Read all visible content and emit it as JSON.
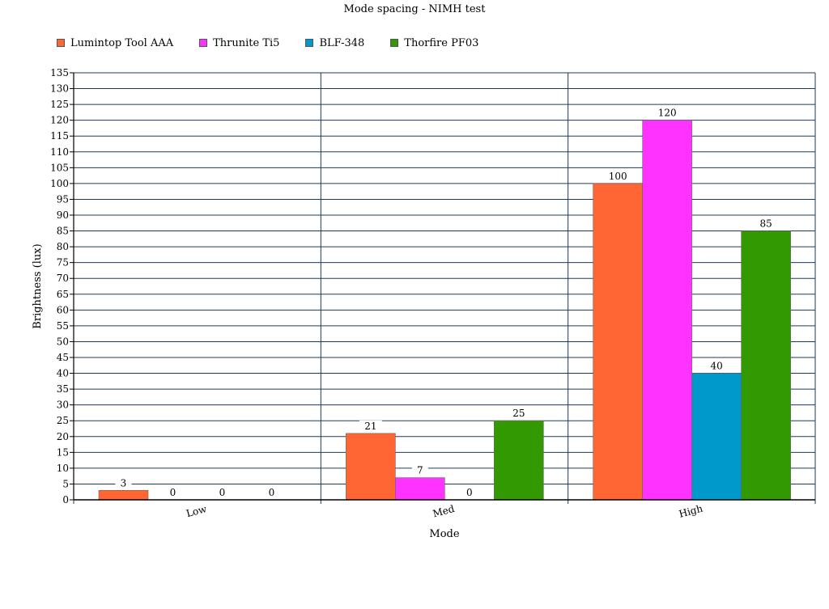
{
  "chart_data": {
    "type": "bar",
    "title": "Mode spacing - NIMH test",
    "xlabel": "Mode",
    "ylabel": "Brightness (lux)",
    "categories": [
      "Low",
      "Med",
      "High"
    ],
    "ylim": [
      0,
      135
    ],
    "ytick_step": 5,
    "grid": true,
    "legend_position": "top-left",
    "series": [
      {
        "name": "Lumintop Tool AAA",
        "color": "#ff6633",
        "values": [
          3,
          21,
          100
        ]
      },
      {
        "name": "Thrunite Ti5",
        "color": "#ff33ff",
        "values": [
          0,
          7,
          120
        ]
      },
      {
        "name": "BLF-348",
        "color": "#0099cc",
        "values": [
          0,
          0,
          40
        ]
      },
      {
        "name": "Thorfire PF03",
        "color": "#339900",
        "values": [
          0,
          25,
          85
        ]
      }
    ]
  }
}
